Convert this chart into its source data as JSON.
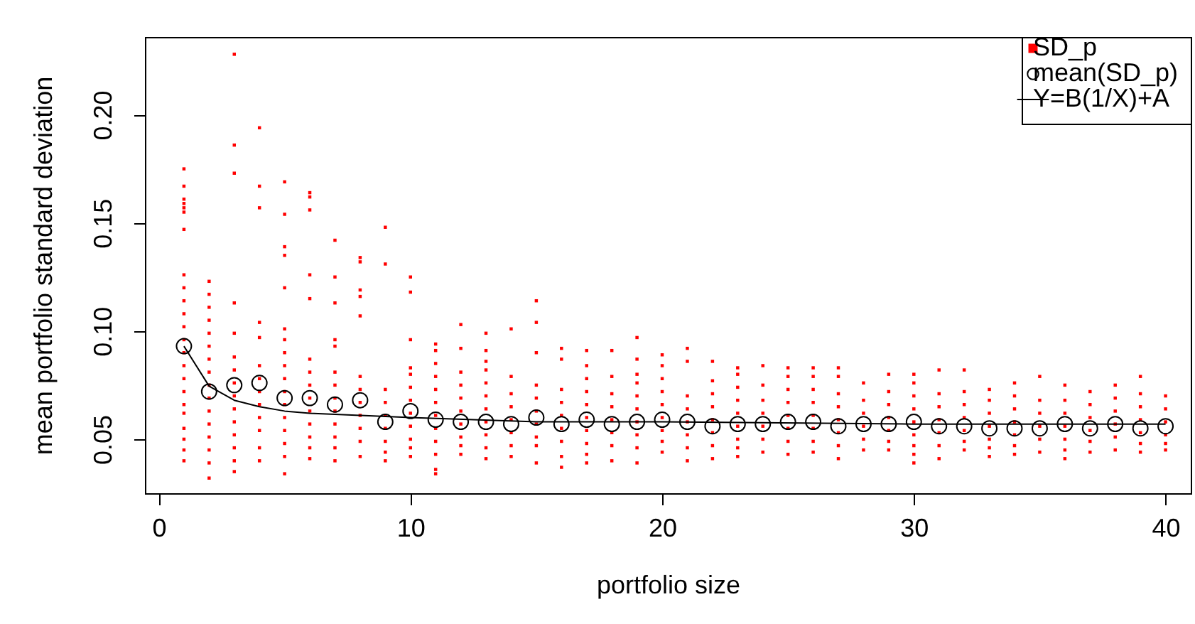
{
  "chart_data": {
    "type": "scatter",
    "xlabel": "portfolio size",
    "ylabel": "mean portfolio standard deviation",
    "xlim": [
      -0.55,
      41.0
    ],
    "ylim": [
      0.025,
      0.236
    ],
    "xticks": [
      0,
      10,
      20,
      30,
      40
    ],
    "yticks": [
      {
        "value": 0.05,
        "label": "0.05"
      },
      {
        "value": 0.1,
        "label": "0.10"
      },
      {
        "value": 0.15,
        "label": "0.15"
      },
      {
        "value": 0.2,
        "label": "0.20"
      }
    ],
    "legend": "top right",
    "series": [
      {
        "name": "SD_p",
        "marker": "square",
        "color": "#ff0000",
        "x": [
          1,
          1,
          1,
          1,
          1,
          1,
          1,
          1,
          1,
          1,
          1,
          1,
          1,
          1,
          1,
          1,
          1,
          1,
          1,
          1,
          1,
          1,
          1,
          2,
          2,
          2,
          2,
          2,
          2,
          2,
          2,
          2,
          2,
          2,
          2,
          2,
          2,
          2,
          2,
          3,
          3,
          3,
          3,
          3,
          3,
          3,
          3,
          3,
          3,
          3,
          3,
          3,
          3,
          3,
          4,
          4,
          4,
          4,
          4,
          4,
          4,
          4,
          4,
          4,
          4,
          4,
          4,
          5,
          5,
          5,
          5,
          5,
          5,
          5,
          5,
          5,
          5,
          5,
          5,
          5,
          5,
          5,
          5,
          5,
          6,
          6,
          6,
          6,
          6,
          6,
          6,
          6,
          6,
          6,
          6,
          6,
          6,
          6,
          7,
          7,
          7,
          7,
          7,
          7,
          7,
          7,
          7,
          7,
          7,
          7,
          7,
          8,
          8,
          8,
          8,
          8,
          8,
          8,
          8,
          8,
          8,
          8,
          8,
          9,
          9,
          9,
          9,
          9,
          9,
          9,
          9,
          9,
          10,
          10,
          10,
          10,
          10,
          10,
          10,
          10,
          10,
          10,
          10,
          10,
          11,
          11,
          11,
          11,
          11,
          11,
          11,
          11,
          11,
          11,
          11,
          11,
          12,
          12,
          12,
          12,
          12,
          12,
          12,
          12,
          12,
          12,
          13,
          13,
          13,
          13,
          13,
          13,
          13,
          13,
          13,
          13,
          13,
          14,
          14,
          14,
          14,
          14,
          14,
          14,
          14,
          15,
          15,
          15,
          15,
          15,
          15,
          15,
          15,
          15,
          15,
          16,
          16,
          16,
          16,
          16,
          16,
          16,
          16,
          16,
          17,
          17,
          17,
          17,
          17,
          17,
          17,
          17,
          17,
          17,
          18,
          18,
          18,
          18,
          18,
          18,
          18,
          18,
          19,
          19,
          19,
          19,
          19,
          19,
          19,
          19,
          19,
          19,
          20,
          20,
          20,
          20,
          20,
          20,
          20,
          20,
          20,
          21,
          21,
          21,
          21,
          21,
          21,
          21,
          21,
          22,
          22,
          22,
          22,
          22,
          22,
          22,
          22,
          23,
          23,
          23,
          23,
          23,
          23,
          23,
          23,
          23,
          24,
          24,
          24,
          24,
          24,
          24,
          24,
          25,
          25,
          25,
          25,
          25,
          25,
          25,
          25,
          26,
          26,
          26,
          26,
          26,
          26,
          26,
          26,
          27,
          27,
          27,
          27,
          27,
          27,
          27,
          27,
          28,
          28,
          28,
          28,
          28,
          28,
          29,
          29,
          29,
          29,
          29,
          29,
          29,
          30,
          30,
          30,
          30,
          30,
          30,
          30,
          30,
          30,
          31,
          31,
          31,
          31,
          31,
          31,
          31,
          32,
          32,
          32,
          32,
          32,
          32,
          32,
          33,
          33,
          33,
          33,
          33,
          33,
          33,
          34,
          34,
          34,
          34,
          34,
          34,
          34,
          35,
          35,
          35,
          35,
          35,
          35,
          36,
          36,
          36,
          36,
          36,
          36,
          36,
          37,
          37,
          37,
          37,
          37,
          37,
          38,
          38,
          38,
          38,
          38,
          38,
          39,
          39,
          39,
          39,
          39,
          39,
          39,
          40,
          40,
          40,
          40,
          40,
          40
        ],
        "values": [
          0.175,
          0.167,
          0.161,
          0.159,
          0.157,
          0.155,
          0.147,
          0.126,
          0.12,
          0.114,
          0.108,
          0.102,
          0.096,
          0.09,
          0.084,
          0.078,
          0.072,
          0.066,
          0.062,
          0.055,
          0.05,
          0.045,
          0.04,
          0.123,
          0.117,
          0.111,
          0.105,
          0.099,
          0.093,
          0.087,
          0.081,
          0.075,
          0.069,
          0.063,
          0.057,
          0.051,
          0.045,
          0.039,
          0.032,
          0.228,
          0.186,
          0.173,
          0.113,
          0.099,
          0.088,
          0.082,
          0.076,
          0.07,
          0.064,
          0.058,
          0.052,
          0.046,
          0.04,
          0.035,
          0.194,
          0.167,
          0.157,
          0.104,
          0.097,
          0.084,
          0.078,
          0.072,
          0.066,
          0.06,
          0.054,
          0.046,
          0.04,
          0.169,
          0.154,
          0.139,
          0.135,
          0.12,
          0.101,
          0.096,
          0.09,
          0.084,
          0.078,
          0.072,
          0.066,
          0.06,
          0.054,
          0.048,
          0.042,
          0.034,
          0.164,
          0.162,
          0.156,
          0.126,
          0.115,
          0.087,
          0.081,
          0.075,
          0.069,
          0.063,
          0.057,
          0.051,
          0.046,
          0.041,
          0.142,
          0.125,
          0.113,
          0.096,
          0.093,
          0.081,
          0.075,
          0.069,
          0.063,
          0.057,
          0.051,
          0.046,
          0.04,
          0.134,
          0.132,
          0.119,
          0.116,
          0.107,
          0.079,
          0.073,
          0.067,
          0.061,
          0.055,
          0.049,
          0.042,
          0.148,
          0.131,
          0.073,
          0.067,
          0.061,
          0.055,
          0.049,
          0.044,
          0.04,
          0.125,
          0.118,
          0.096,
          0.083,
          0.08,
          0.074,
          0.068,
          0.062,
          0.056,
          0.05,
          0.046,
          0.042,
          0.094,
          0.091,
          0.085,
          0.079,
          0.073,
          0.067,
          0.061,
          0.055,
          0.049,
          0.043,
          0.036,
          0.034,
          0.103,
          0.092,
          0.081,
          0.075,
          0.069,
          0.063,
          0.057,
          0.051,
          0.047,
          0.043,
          0.099,
          0.091,
          0.086,
          0.082,
          0.076,
          0.07,
          0.064,
          0.058,
          0.052,
          0.046,
          0.041,
          0.101,
          0.079,
          0.071,
          0.065,
          0.059,
          0.053,
          0.047,
          0.042,
          0.114,
          0.104,
          0.09,
          0.075,
          0.069,
          0.063,
          0.057,
          0.051,
          0.047,
          0.039,
          0.092,
          0.087,
          0.073,
          0.067,
          0.061,
          0.055,
          0.049,
          0.042,
          0.037,
          0.091,
          0.084,
          0.078,
          0.072,
          0.066,
          0.06,
          0.054,
          0.048,
          0.043,
          0.039,
          0.091,
          0.079,
          0.071,
          0.065,
          0.059,
          0.053,
          0.047,
          0.04,
          0.097,
          0.087,
          0.08,
          0.076,
          0.07,
          0.064,
          0.058,
          0.052,
          0.046,
          0.039,
          0.089,
          0.084,
          0.078,
          0.072,
          0.066,
          0.06,
          0.054,
          0.049,
          0.044,
          0.092,
          0.086,
          0.07,
          0.064,
          0.058,
          0.052,
          0.046,
          0.04,
          0.086,
          0.077,
          0.071,
          0.065,
          0.059,
          0.053,
          0.047,
          0.041,
          0.083,
          0.08,
          0.074,
          0.068,
          0.062,
          0.056,
          0.05,
          0.046,
          0.042,
          0.084,
          0.075,
          0.068,
          0.062,
          0.056,
          0.05,
          0.044,
          0.083,
          0.079,
          0.073,
          0.067,
          0.061,
          0.055,
          0.049,
          0.043,
          0.083,
          0.079,
          0.073,
          0.067,
          0.061,
          0.055,
          0.049,
          0.044,
          0.083,
          0.079,
          0.071,
          0.065,
          0.059,
          0.053,
          0.047,
          0.041,
          0.076,
          0.068,
          0.062,
          0.056,
          0.05,
          0.045,
          0.08,
          0.072,
          0.066,
          0.06,
          0.054,
          0.049,
          0.045,
          0.08,
          0.076,
          0.07,
          0.064,
          0.058,
          0.052,
          0.047,
          0.043,
          0.039,
          0.082,
          0.071,
          0.065,
          0.059,
          0.053,
          0.047,
          0.041,
          0.082,
          0.072,
          0.066,
          0.06,
          0.054,
          0.049,
          0.045,
          0.073,
          0.068,
          0.062,
          0.056,
          0.05,
          0.046,
          0.042,
          0.076,
          0.07,
          0.064,
          0.058,
          0.052,
          0.047,
          0.043,
          0.079,
          0.068,
          0.062,
          0.056,
          0.05,
          0.044,
          0.075,
          0.068,
          0.062,
          0.056,
          0.05,
          0.045,
          0.041,
          0.072,
          0.066,
          0.06,
          0.054,
          0.049,
          0.044,
          0.075,
          0.069,
          0.063,
          0.057,
          0.051,
          0.045,
          0.079,
          0.071,
          0.065,
          0.059,
          0.053,
          0.048,
          0.044,
          0.07,
          0.064,
          0.058,
          0.052,
          0.048,
          0.045
        ]
      },
      {
        "name": "mean(SD_p)",
        "marker": "circle",
        "color": "#000000",
        "x": [
          1,
          2,
          3,
          4,
          5,
          6,
          7,
          8,
          9,
          10,
          11,
          12,
          13,
          14,
          15,
          16,
          17,
          18,
          19,
          20,
          21,
          22,
          23,
          24,
          25,
          26,
          27,
          28,
          29,
          30,
          31,
          32,
          33,
          34,
          35,
          36,
          37,
          38,
          39,
          40
        ],
        "values": [
          0.093,
          0.072,
          0.075,
          0.076,
          0.069,
          0.069,
          0.066,
          0.068,
          0.058,
          0.063,
          0.059,
          0.058,
          0.058,
          0.057,
          0.06,
          0.057,
          0.059,
          0.057,
          0.058,
          0.059,
          0.058,
          0.056,
          0.057,
          0.057,
          0.058,
          0.058,
          0.056,
          0.057,
          0.057,
          0.058,
          0.056,
          0.056,
          0.055,
          0.055,
          0.055,
          0.057,
          0.055,
          0.057,
          0.055,
          0.056
        ]
      },
      {
        "name": "Y=B(1/X)+A",
        "type": "line",
        "line_style": "solid",
        "color": "#000000",
        "x": [
          1,
          2,
          3,
          4,
          5,
          6,
          8,
          10,
          15,
          20,
          30,
          40
        ],
        "values": [
          0.093,
          0.0745,
          0.068,
          0.065,
          0.063,
          0.062,
          0.061,
          0.06,
          0.058,
          0.058,
          0.057,
          0.057
        ]
      }
    ]
  }
}
